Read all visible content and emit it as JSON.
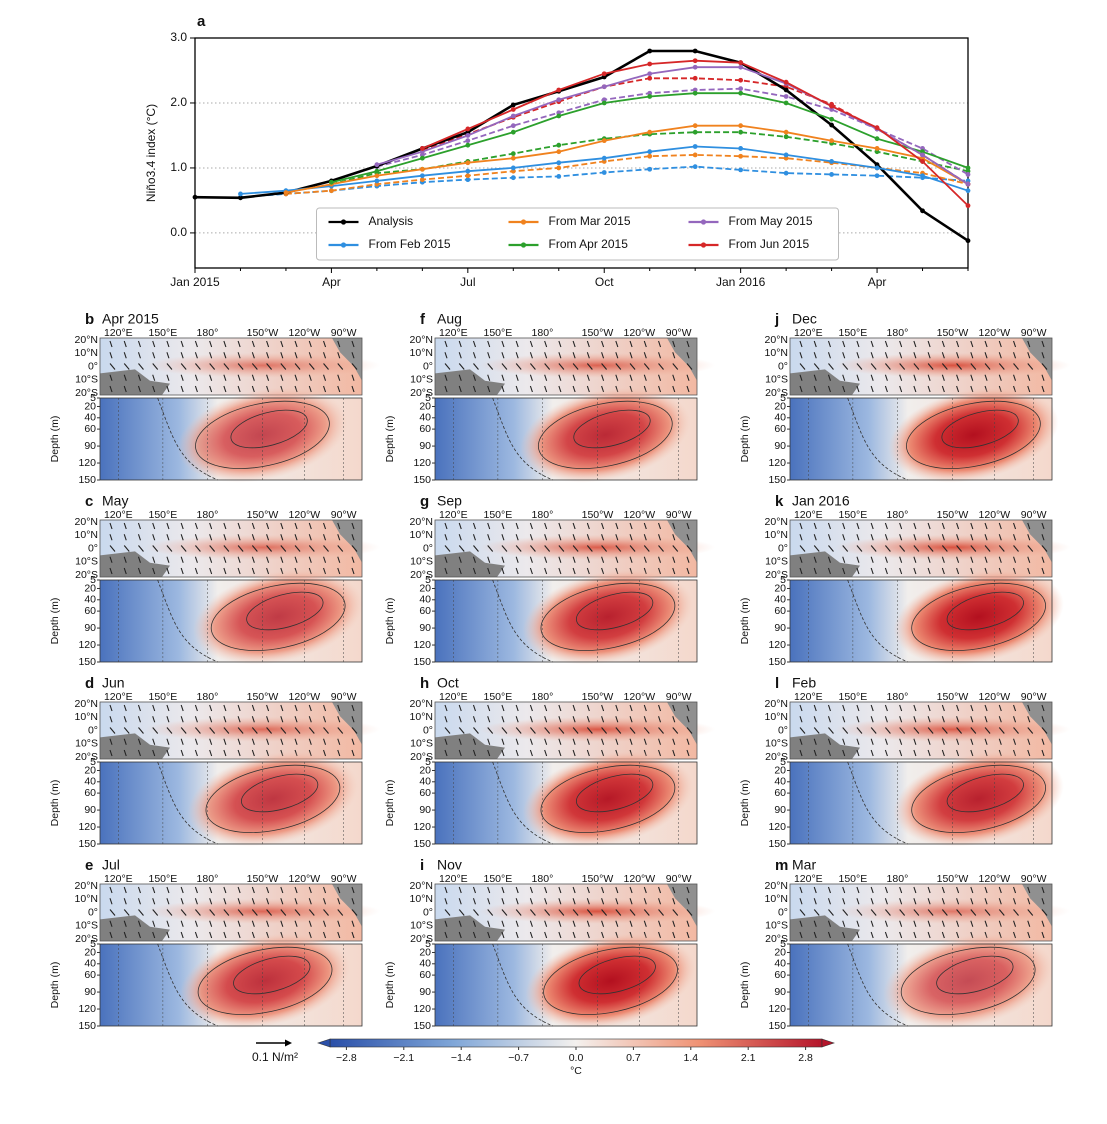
{
  "chart_data": {
    "type": "line",
    "panel_letter": "a",
    "y_label": "Niño3.4 index (°C)",
    "categories": [
      "Jan 2015",
      null,
      null,
      "Apr",
      null,
      null,
      "Jul",
      null,
      null,
      "Oct",
      null,
      null,
      "Jan 2016",
      null,
      null,
      "Apr",
      null,
      null
    ],
    "ylim": [
      -0.54,
      3.0
    ],
    "yticks": [
      {
        "value": 0,
        "label": "0.0"
      },
      {
        "value": 1,
        "label": "1.0"
      },
      {
        "value": 2,
        "label": "2.0"
      },
      {
        "value": 3,
        "label": "3.0"
      }
    ],
    "grid": true,
    "legend": "lower center",
    "series": [
      {
        "name": "Analysis",
        "color": "#000000",
        "values": [
          0.55,
          0.54,
          0.62,
          0.8,
          1.03,
          1.3,
          1.55,
          1.97,
          2.18,
          2.4,
          2.8,
          2.8,
          2.62,
          2.2,
          1.66,
          1.05,
          0.34,
          -0.12
        ]
      },
      {
        "name": "From Feb 2015",
        "color": "#2f8fe0",
        "values": [
          null,
          0.6,
          0.65,
          0.72,
          0.8,
          0.88,
          0.95,
          1.0,
          1.08,
          1.15,
          1.25,
          1.33,
          1.3,
          1.2,
          1.1,
          1.0,
          0.88,
          0.65
        ],
        "dashed_values": [
          null,
          0.55,
          0.6,
          0.65,
          0.72,
          0.78,
          0.82,
          0.85,
          0.87,
          0.93,
          0.98,
          1.02,
          0.97,
          0.92,
          0.9,
          0.88,
          0.85,
          0.8
        ]
      },
      {
        "name": "From Mar 2015",
        "color": "#f0821e",
        "values": [
          null,
          null,
          0.62,
          0.75,
          0.88,
          0.98,
          1.08,
          1.15,
          1.25,
          1.42,
          1.55,
          1.65,
          1.65,
          1.55,
          1.42,
          1.3,
          1.15,
          0.75
        ],
        "dashed_values": [
          null,
          null,
          0.6,
          0.65,
          0.75,
          0.82,
          0.88,
          0.95,
          1.0,
          1.1,
          1.18,
          1.2,
          1.18,
          1.15,
          1.08,
          1.0,
          0.92,
          0.75
        ]
      },
      {
        "name": "From Apr 2015",
        "color": "#2ca02c",
        "values": [
          null,
          null,
          null,
          0.78,
          0.95,
          1.15,
          1.35,
          1.55,
          1.8,
          2.0,
          2.1,
          2.15,
          2.15,
          2.0,
          1.75,
          1.45,
          1.25,
          1.0
        ],
        "dashed_values": [
          null,
          null,
          null,
          0.75,
          0.92,
          0.98,
          1.1,
          1.22,
          1.35,
          1.45,
          1.52,
          1.55,
          1.55,
          1.48,
          1.38,
          1.25,
          1.1,
          0.95
        ]
      },
      {
        "name": "From May 2015",
        "color": "#9467bd",
        "values": [
          null,
          null,
          null,
          null,
          1.05,
          1.25,
          1.5,
          1.8,
          2.05,
          2.25,
          2.45,
          2.55,
          2.55,
          2.3,
          1.95,
          1.6,
          1.2,
          0.75
        ],
        "dashed_values": [
          null,
          null,
          null,
          null,
          1.02,
          1.2,
          1.42,
          1.65,
          1.85,
          2.05,
          2.15,
          2.2,
          2.22,
          2.1,
          1.9,
          1.6,
          1.3,
          0.9
        ]
      },
      {
        "name": "From Jun 2015",
        "color": "#d62728",
        "values": [
          null,
          null,
          null,
          null,
          null,
          1.3,
          1.6,
          1.9,
          2.2,
          2.45,
          2.6,
          2.65,
          2.62,
          2.32,
          1.95,
          1.62,
          1.1,
          0.42
        ],
        "dashed_values": [
          null,
          null,
          null,
          null,
          null,
          1.28,
          1.52,
          1.78,
          2.02,
          2.25,
          2.38,
          2.38,
          2.35,
          2.25,
          1.98,
          1.6,
          1.2,
          0.75
        ]
      }
    ]
  },
  "panels": [
    {
      "letter": "b",
      "title": "Apr 2015"
    },
    {
      "letter": "c",
      "title": "May"
    },
    {
      "letter": "d",
      "title": "Jun"
    },
    {
      "letter": "e",
      "title": "Jul"
    },
    {
      "letter": "f",
      "title": "Aug"
    },
    {
      "letter": "g",
      "title": "Sep"
    },
    {
      "letter": "h",
      "title": "Oct"
    },
    {
      "letter": "i",
      "title": "Nov"
    },
    {
      "letter": "j",
      "title": "Dec"
    },
    {
      "letter": "k",
      "title": "Jan 2016"
    },
    {
      "letter": "l",
      "title": "Feb"
    },
    {
      "letter": "m",
      "title": "Mar"
    }
  ],
  "lon_labels": [
    "120°E",
    "150°E",
    "180°",
    "150°W",
    "120°W",
    "90°W"
  ],
  "lat_labels": [
    "20°N",
    "10°N",
    "0°",
    "10°S",
    "20°S"
  ],
  "depth_label": "Depth (m)",
  "depth_lim": [
    5,
    150
  ],
  "depth_ticks": [
    5,
    20,
    40,
    60,
    90,
    120,
    150
  ],
  "colorbar": {
    "lim": [
      -3,
      3
    ],
    "unit": "°C",
    "ticks": [
      {
        "value": -2.8,
        "label": "−2.8"
      },
      {
        "value": -2.1,
        "label": "−2.1"
      },
      {
        "value": -1.4,
        "label": "−1.4"
      },
      {
        "value": -0.7,
        "label": "−0.7"
      },
      {
        "value": 0,
        "label": "0.0"
      },
      {
        "value": 0.7,
        "label": "0.7"
      },
      {
        "value": 1.4,
        "label": "1.4"
      },
      {
        "value": 2.1,
        "label": "2.1"
      },
      {
        "value": 2.8,
        "label": "2.8"
      }
    ]
  },
  "wind_scale_label": "0.1 N/m²"
}
